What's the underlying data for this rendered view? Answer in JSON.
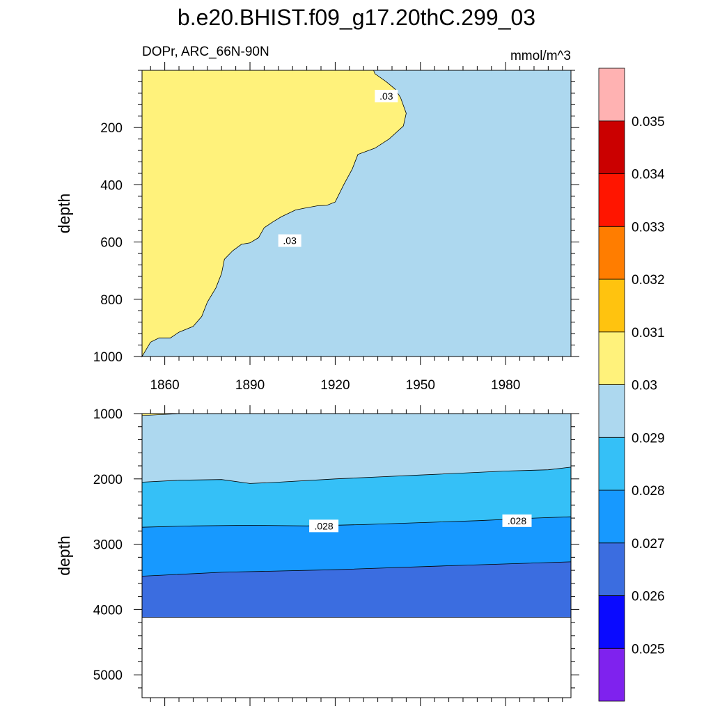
{
  "chart_data": {
    "type": "heatmap",
    "title": "b.e20.BHIST.f09_g17.20thC.299_03",
    "subtitle_left": "DOPr, ARC_66N-90N",
    "subtitle_right": "mmol/m^3",
    "x": {
      "range": [
        1852,
        2003
      ],
      "tick_values": [
        1860,
        1890,
        1920,
        1950,
        1980
      ],
      "tick_labels": [
        "1860",
        "1890",
        "1920",
        "1950",
        "1980"
      ]
    },
    "colorbar": {
      "boundaries": [
        0.025,
        0.026,
        0.027,
        0.028,
        0.029,
        0.03,
        0.031,
        0.032,
        0.033,
        0.034,
        0.035
      ],
      "labels": [
        "0.025",
        "0.026",
        "0.027",
        "0.028",
        "0.029",
        "0.03",
        "0.031",
        "0.032",
        "0.033",
        "0.034",
        "0.035"
      ],
      "colors": [
        "#7f22ee",
        "#0a0aff",
        "#3b6de0",
        "#1799ff",
        "#35c0f7",
        "#add8ef",
        "#fff27b",
        "#ffc30f",
        "#ff7d00",
        "#ff1500",
        "#cb0000",
        "#ffb2b2"
      ]
    },
    "panels": [
      {
        "name": "upper",
        "ylabel": "depth",
        "ylim": [
          0,
          1000
        ],
        "y_reversed": true,
        "y_tick_values": [
          200,
          400,
          600,
          800,
          1000
        ],
        "y_tick_labels": [
          "200",
          "400",
          "600",
          "800",
          "1000"
        ],
        "background_color": "#add8ef",
        "regions": [
          {
            "level": "0.03-0.031",
            "color": "#fff27b",
            "boundary_contour": ".03",
            "points": [
              [
                1852,
                0
              ],
              [
                1933.5,
                0
              ],
              [
                1934,
                12
              ],
              [
                1938,
                40
              ],
              [
                1941,
                65
              ],
              [
                1943,
                95
              ],
              [
                1945,
                150
              ],
              [
                1944,
                195
              ],
              [
                1939,
                240
              ],
              [
                1934,
                272
              ],
              [
                1931,
                283
              ],
              [
                1928,
                294
              ],
              [
                1926,
                345
              ],
              [
                1923,
                400
              ],
              [
                1920,
                460
              ],
              [
                1917,
                472
              ],
              [
                1914,
                473
              ],
              [
                1909,
                482
              ],
              [
                1906,
                488
              ],
              [
                1901,
                512
              ],
              [
                1898,
                530
              ],
              [
                1895,
                550
              ],
              [
                1893,
                585
              ],
              [
                1890,
                603
              ],
              [
                1887,
                608
              ],
              [
                1884,
                630
              ],
              [
                1881,
                660
              ],
              [
                1880,
                710
              ],
              [
                1878,
                760
              ],
              [
                1875,
                810
              ],
              [
                1873,
                860
              ],
              [
                1870,
                895
              ],
              [
                1865,
                915
              ],
              [
                1862,
                935
              ],
              [
                1858,
                935
              ],
              [
                1855,
                950
              ],
              [
                1852,
                1000
              ]
            ]
          }
        ],
        "contour_labels": [
          {
            "text": ".03",
            "x": 1938,
            "y": 90
          },
          {
            "text": ".03",
            "x": 1904,
            "y": 595
          }
        ]
      },
      {
        "name": "lower",
        "ylabel": "depth",
        "ylim": [
          1000,
          5350
        ],
        "y_reversed": true,
        "y_tick_values": [
          1000,
          2000,
          3000,
          4000,
          5000
        ],
        "y_tick_labels": [
          "1000",
          "2000",
          "3000",
          "4000",
          "5000"
        ],
        "data_bottom": 4120,
        "layers": [
          {
            "level": "0.029-0.03",
            "color": "#add8ef",
            "boundary": [
              [
                1852,
                1000
              ],
              [
                2003,
                1000
              ]
            ]
          },
          {
            "level": "0.028-0.029",
            "color": "#35c0f7",
            "boundary": [
              [
                1852,
                2050
              ],
              [
                1865,
                2020
              ],
              [
                1880,
                2010
              ],
              [
                1890,
                2070
              ],
              [
                1900,
                2050
              ],
              [
                1920,
                2000
              ],
              [
                1935,
                1970
              ],
              [
                1950,
                1940
              ],
              [
                1965,
                1910
              ],
              [
                1980,
                1880
              ],
              [
                1995,
                1860
              ],
              [
                2003,
                1820
              ]
            ]
          },
          {
            "level": "0.027-0.028",
            "color": "#1799ff",
            "boundary": [
              [
                1852,
                2740
              ],
              [
                1870,
                2720
              ],
              [
                1890,
                2710
              ],
              [
                1910,
                2720
              ],
              [
                1930,
                2700
              ],
              [
                1950,
                2670
              ],
              [
                1970,
                2640
              ],
              [
                1990,
                2600
              ],
              [
                2003,
                2580
              ]
            ]
          },
          {
            "level": "0.026-0.027",
            "color": "#3b6de0",
            "boundary": [
              [
                1852,
                3490
              ],
              [
                1880,
                3430
              ],
              [
                1920,
                3390
              ],
              [
                1960,
                3330
              ],
              [
                2003,
                3270
              ]
            ]
          }
        ],
        "top_left_sliver": {
          "level": "0.03-0.031",
          "color": "#fff27b",
          "points": [
            [
              1852,
              1000
            ],
            [
              1866,
              1000
            ],
            [
              1852,
              1030
            ]
          ]
        },
        "contour_labels": [
          {
            "text": ".028",
            "x": 1916,
            "y": 2720
          },
          {
            "text": ".028",
            "x": 1984,
            "y": 2640
          }
        ]
      }
    ]
  }
}
